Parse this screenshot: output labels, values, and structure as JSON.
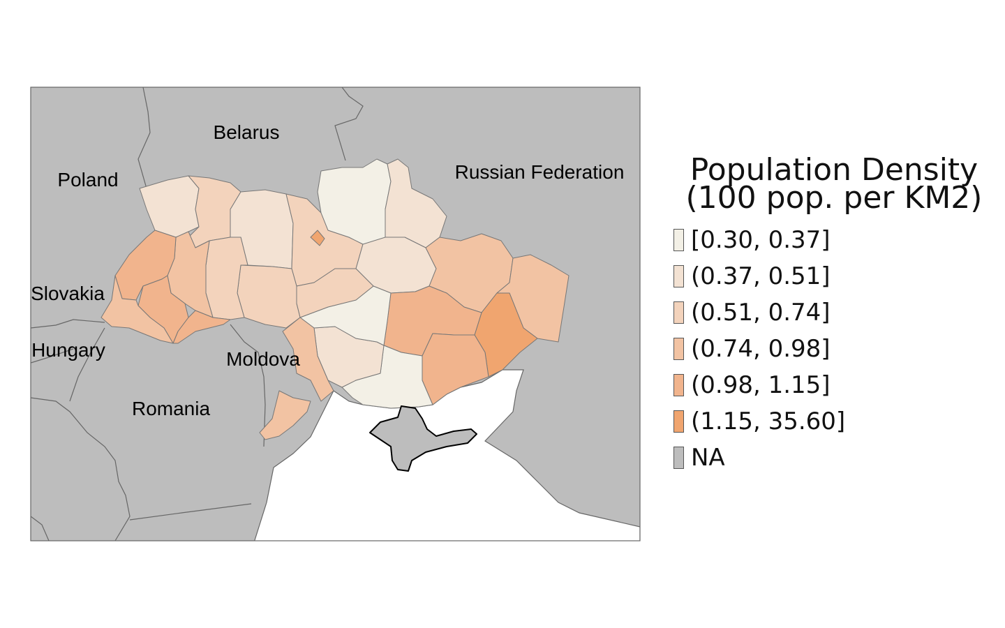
{
  "map": {
    "countries": [
      {
        "name": "Belarus"
      },
      {
        "name": "Poland"
      },
      {
        "name": "Russian Federation"
      },
      {
        "name": "Slovakia"
      },
      {
        "name": "Hungary"
      },
      {
        "name": "Moldova"
      },
      {
        "name": "Romania"
      }
    ],
    "colors": {
      "neighbor_fill": "#bdbdbd",
      "water": "#ffffff",
      "border": "#666666"
    }
  },
  "legend": {
    "title_line1": "Population Density",
    "title_line2": "(100 pop. per KM2)",
    "items": [
      {
        "label": "[0.30, 0.37]",
        "color": "#f3f0e6"
      },
      {
        "label": "(0.37, 0.51]",
        "color": "#f3e2d3"
      },
      {
        "label": "(0.51, 0.74]",
        "color": "#f3d3bc"
      },
      {
        "label": "(0.74, 0.98]",
        "color": "#f2c3a3"
      },
      {
        "label": "(0.98, 1.15]",
        "color": "#f1b48d"
      },
      {
        "label": "(1.15, 35.60]",
        "color": "#f0a56f"
      },
      {
        "label": "NA",
        "color": "#bdbdbd"
      }
    ]
  }
}
